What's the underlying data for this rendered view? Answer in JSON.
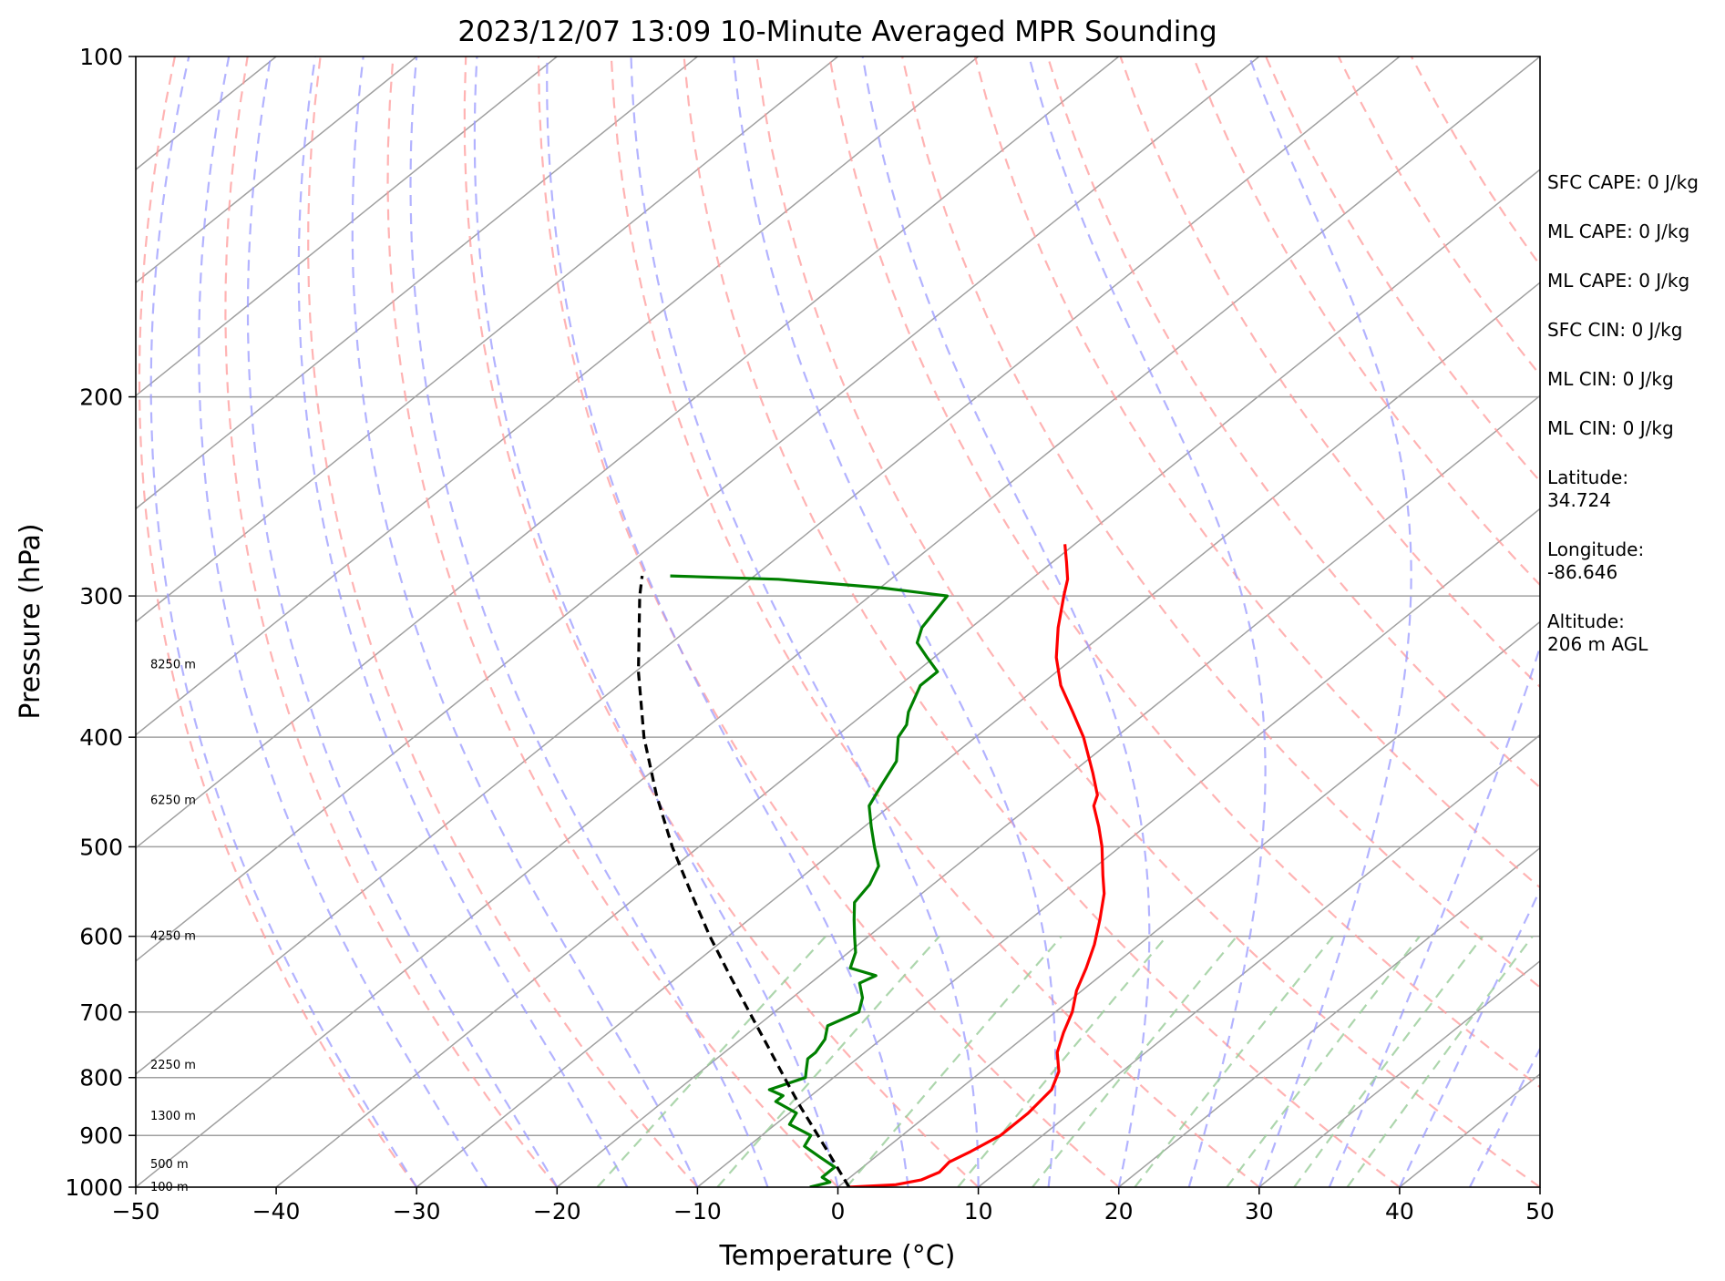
{
  "chart_data": {
    "type": "skew-t log-p sounding",
    "title": "2023/12/07 13:09 10-Minute Averaged MPR Sounding",
    "xlabel": "Temperature (°C)",
    "ylabel": "Pressure (hPa)",
    "xlim": [
      -50,
      50
    ],
    "ylim": [
      1000,
      100
    ],
    "y_scale": "log",
    "x_ticks": [
      "−50",
      "−40",
      "−30",
      "−20",
      "−10",
      "0",
      "10",
      "20",
      "30",
      "40",
      "50"
    ],
    "y_ticks": [
      "100",
      "200",
      "300",
      "400",
      "500",
      "600",
      "700",
      "800",
      "900",
      "1000"
    ],
    "grid": true,
    "series": [
      {
        "name": "",
        "color": "#ff0000",
        "points": [
          [
            1000,
            0.8
          ],
          [
            995,
            3.9
          ],
          [
            985,
            5.3
          ],
          [
            970,
            5.9
          ],
          [
            950,
            5.7
          ],
          [
            930,
            6.3
          ],
          [
            900,
            7.0
          ],
          [
            860,
            7.0
          ],
          [
            820,
            6.6
          ],
          [
            790,
            5.5
          ],
          [
            760,
            3.7
          ],
          [
            730,
            2.4
          ],
          [
            700,
            1.2
          ],
          [
            670,
            -0.4
          ],
          [
            640,
            -1.7
          ],
          [
            610,
            -3.2
          ],
          [
            580,
            -5.0
          ],
          [
            550,
            -7.0
          ],
          [
            530,
            -8.7
          ],
          [
            500,
            -11.3
          ],
          [
            480,
            -13.3
          ],
          [
            460,
            -15.5
          ],
          [
            450,
            -16.2
          ],
          [
            430,
            -18.5
          ],
          [
            400,
            -22.3
          ],
          [
            380,
            -25.3
          ],
          [
            360,
            -28.5
          ],
          [
            340,
            -31.3
          ],
          [
            320,
            -33.8
          ],
          [
            300,
            -36.2
          ],
          [
            290,
            -37.4
          ],
          [
            280,
            -39.0
          ],
          [
            270,
            -40.7
          ]
        ]
      },
      {
        "name": "",
        "color": "#008000",
        "points": [
          [
            1000,
            -2.0
          ],
          [
            990,
            -1.0
          ],
          [
            980,
            -2.0
          ],
          [
            960,
            -2.0
          ],
          [
            940,
            -4.0
          ],
          [
            920,
            -6.0
          ],
          [
            900,
            -6.5
          ],
          [
            880,
            -9.0
          ],
          [
            860,
            -9.5
          ],
          [
            840,
            -12.0
          ],
          [
            830,
            -12.0
          ],
          [
            820,
            -13.5
          ],
          [
            800,
            -12.0
          ],
          [
            790,
            -12.5
          ],
          [
            770,
            -13.5
          ],
          [
            760,
            -13.5
          ],
          [
            740,
            -14.0
          ],
          [
            720,
            -15.0
          ],
          [
            700,
            -14.0
          ],
          [
            680,
            -15.0
          ],
          [
            660,
            -16.5
          ],
          [
            650,
            -16.0
          ],
          [
            640,
            -18.5
          ],
          [
            620,
            -19.5
          ],
          [
            600,
            -21.0
          ],
          [
            580,
            -22.5
          ],
          [
            560,
            -24.0
          ],
          [
            540,
            -24.5
          ],
          [
            520,
            -25.5
          ],
          [
            500,
            -27.5
          ],
          [
            480,
            -29.5
          ],
          [
            460,
            -31.5
          ],
          [
            440,
            -32.5
          ],
          [
            420,
            -33.5
          ],
          [
            400,
            -35.5
          ],
          [
            390,
            -36.0
          ],
          [
            380,
            -37.0
          ],
          [
            360,
            -38.5
          ],
          [
            350,
            -38.5
          ],
          [
            340,
            -40.5
          ],
          [
            330,
            -42.5
          ],
          [
            320,
            -43.5
          ],
          [
            310,
            -44.0
          ],
          [
            300,
            -44.5
          ],
          [
            295,
            -50.0
          ],
          [
            290,
            -58.0
          ],
          [
            288,
            -66.0
          ]
        ]
      },
      {
        "name": "",
        "color": "#000000",
        "style": "dashed",
        "points": [
          [
            1000,
            0.8
          ],
          [
            950,
            -2.5
          ],
          [
            900,
            -6.0
          ],
          [
            850,
            -9.7
          ],
          [
            800,
            -13.5
          ],
          [
            750,
            -17.5
          ],
          [
            700,
            -21.8
          ],
          [
            650,
            -26.4
          ],
          [
            600,
            -31.3
          ],
          [
            550,
            -36.4
          ],
          [
            500,
            -41.9
          ],
          [
            450,
            -47.6
          ],
          [
            400,
            -53.6
          ],
          [
            350,
            -59.8
          ],
          [
            300,
            -66.4
          ],
          [
            288,
            -68.0
          ]
        ]
      }
    ],
    "height_labels": [
      "100 m",
      "500 m",
      "1300 m",
      "2250 m",
      "4250 m",
      "6250 m",
      "8250 m"
    ],
    "height_label_pressures": [
      1000,
      955,
      865,
      780,
      600,
      455,
      345
    ],
    "background": {
      "isotherm_color": "#a0a0a0",
      "dry_adiabat_color": "#ff9999",
      "moist_adiabat_color": "#9999ff",
      "mixing_ratio_color": "#99cc99"
    }
  },
  "info": {
    "items": [
      "SFC CAPE: 0 J/kg",
      "ML CAPE: 0 J/kg",
      "ML CAPE: 0 J/kg",
      "SFC CIN: 0 J/kg",
      "ML CIN: 0 J/kg",
      "ML CIN: 0 J/kg",
      "Latitude:\n34.724",
      "Longitude:\n-86.646",
      "Altitude:\n206 m AGL"
    ]
  }
}
